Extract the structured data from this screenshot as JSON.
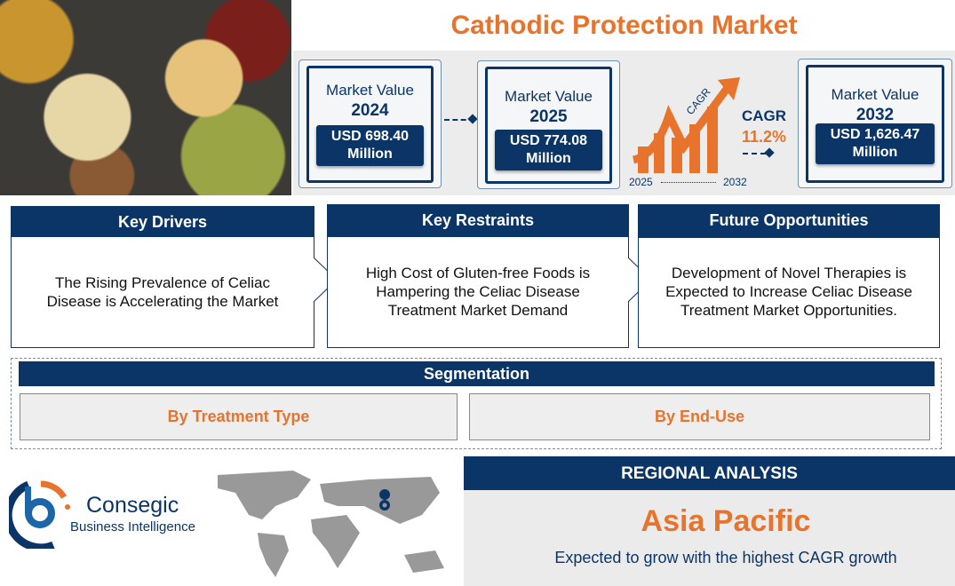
{
  "title": "Cathodic Protection Market",
  "cards": [
    {
      "label": "Market Value",
      "year": "2024",
      "value": "USD 698.40 Million"
    },
    {
      "label": "Market Value",
      "year": "2025",
      "value": "USD 774.08 Million"
    },
    {
      "label": "Market Value",
      "year": "2032",
      "value": "USD 1,626.47 Million"
    }
  ],
  "cagr": {
    "arrow_label": "CAGR",
    "label": "CAGR",
    "value": "11.2%",
    "start": "2025",
    "end": "2032"
  },
  "drivers": {
    "title": "Key Drivers",
    "text": "The Rising Prevalence of Celiac Disease is Accelerating the Market"
  },
  "restraints": {
    "title": "Key Restraints",
    "text": "High Cost of Gluten-free Foods is Hampering the Celiac Disease Treatment Market Demand"
  },
  "opportunities": {
    "title": "Future Opportunities",
    "text": "Development of Novel Therapies is Expected to Increase Celiac Disease Treatment Market Opportunities."
  },
  "segmentation": {
    "title": "Segmentation",
    "items": [
      "By Treatment Type",
      "By End-Use"
    ]
  },
  "logo": {
    "name": "Consegic",
    "tagline": "Business Intelligence"
  },
  "regional": {
    "header": "REGIONAL ANALYSIS",
    "region": "Asia Pacific",
    "text": "Expected to grow with the highest CAGR growth"
  },
  "colors": {
    "navy": "#0b3566",
    "orange": "#e8732c"
  }
}
